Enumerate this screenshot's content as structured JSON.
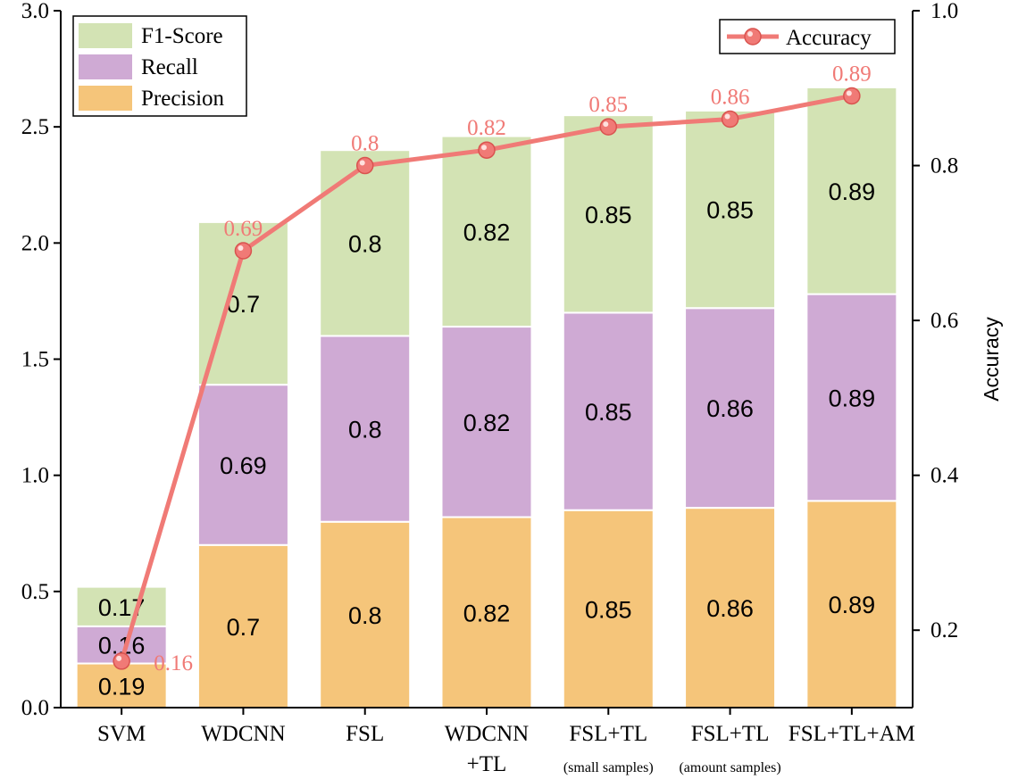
{
  "chart_data": {
    "type": "bar",
    "stacked": true,
    "categories": [
      {
        "main": "SVM",
        "line2": "",
        "sub": ""
      },
      {
        "main": "WDCNN",
        "line2": "",
        "sub": ""
      },
      {
        "main": "FSL",
        "line2": "",
        "sub": ""
      },
      {
        "main": "WDCNN",
        "line2": "+TL",
        "sub": ""
      },
      {
        "main": "FSL+TL",
        "line2": "",
        "sub": "(small samples)"
      },
      {
        "main": "FSL+TL",
        "line2": "",
        "sub": "(amount samples)"
      },
      {
        "main": "FSL+TL+AM",
        "line2": "",
        "sub": ""
      }
    ],
    "series": [
      {
        "name": "Precision",
        "color": "#f5c57a",
        "values": [
          0.19,
          0.7,
          0.8,
          0.82,
          0.85,
          0.86,
          0.89
        ],
        "labels": [
          "0.19",
          "0.7",
          "0.8",
          "0.82",
          "0.85",
          "0.86",
          "0.89"
        ]
      },
      {
        "name": "Recall",
        "color": "#cfaad4",
        "values": [
          0.16,
          0.69,
          0.8,
          0.82,
          0.85,
          0.86,
          0.89
        ],
        "labels": [
          "0.16",
          "0.69",
          "0.8",
          "0.82",
          "0.85",
          "0.86",
          "0.89"
        ]
      },
      {
        "name": "F1-Score",
        "color": "#d3e3b4",
        "values": [
          0.17,
          0.7,
          0.8,
          0.82,
          0.85,
          0.85,
          0.89
        ],
        "labels": [
          "0.17",
          "0.7",
          "0.8",
          "0.82",
          "0.85",
          "0.85",
          "0.89"
        ]
      }
    ],
    "line_series": {
      "name": "Accuracy",
      "color": "#f07a76",
      "values": [
        0.16,
        0.69,
        0.8,
        0.82,
        0.85,
        0.86,
        0.89
      ],
      "labels": [
        "0.16",
        "0.69",
        "0.8",
        "0.82",
        "0.85",
        "0.86",
        "0.89"
      ]
    },
    "left_axis": {
      "min": 0,
      "max": 3.0,
      "ticks": [
        "0.0",
        "0.5",
        "1.0",
        "1.5",
        "2.0",
        "2.5",
        "3.0"
      ]
    },
    "right_axis": {
      "min": 0.1,
      "max": 1.0,
      "ticks": [
        "0.2",
        "0.4",
        "0.6",
        "0.8",
        "1.0"
      ],
      "tick_values": [
        0.2,
        0.4,
        0.6,
        0.8,
        1.0
      ],
      "label": "Accuracy"
    },
    "bar_legend_order": [
      "F1-Score",
      "Recall",
      "Precision"
    ],
    "line_legend_label": "Accuracy"
  }
}
